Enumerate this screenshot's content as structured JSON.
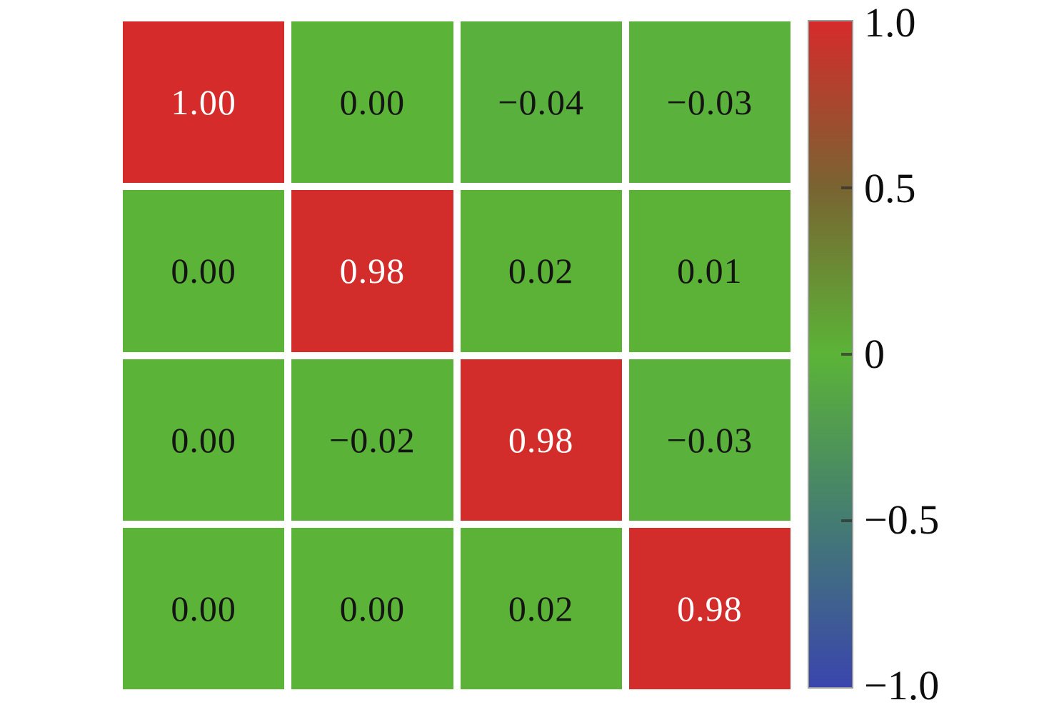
{
  "chart_data": {
    "type": "heatmap",
    "rows": 4,
    "cols": 4,
    "matrix": [
      [
        1.0,
        0.0,
        -0.04,
        -0.03
      ],
      [
        0.0,
        0.98,
        0.02,
        0.01
      ],
      [
        0.0,
        -0.02,
        0.98,
        -0.03
      ],
      [
        0.0,
        0.0,
        0.02,
        0.98
      ]
    ],
    "cell_labels": [
      [
        "1.00",
        "0.00",
        "−0.04",
        "−0.03"
      ],
      [
        "0.00",
        "0.98",
        "0.02",
        "0.01"
      ],
      [
        "0.00",
        "−0.02",
        "0.98",
        "−0.03"
      ],
      [
        "0.00",
        "0.00",
        "0.02",
        "0.98"
      ]
    ],
    "value_range": [
      -1.0,
      1.0
    ],
    "grid_gap_color": "#ffffff",
    "cell_text_dark": "#141414",
    "cell_text_light": "#ffffff",
    "diagonal_color": "#d62b2b",
    "off_diagonal_color": "#5bb437",
    "colormap_stops": [
      {
        "value": 1.0,
        "color": "#d62b2b"
      },
      {
        "value": 0.5,
        "color": "#796431"
      },
      {
        "value": 0.0,
        "color": "#5bb437"
      },
      {
        "value": -0.5,
        "color": "#447c72"
      },
      {
        "value": -1.0,
        "color": "#3a45ad"
      }
    ],
    "colorbar": {
      "position": "right",
      "ticks": [
        {
          "label": "1.0",
          "value": 1.0
        },
        {
          "label": "0.5",
          "value": 0.5
        },
        {
          "label": "0",
          "value": 0.0
        },
        {
          "label": "−0.5",
          "value": -0.5
        },
        {
          "label": "−1.0",
          "value": -1.0
        }
      ]
    }
  }
}
